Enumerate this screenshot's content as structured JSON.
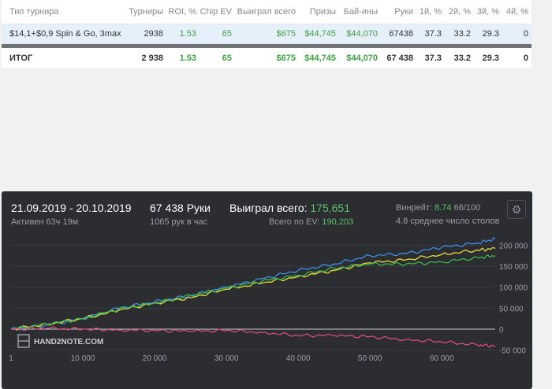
{
  "table": {
    "headers": [
      "Тип турнира",
      "Турниры",
      "ROI, %",
      "Chip EV",
      "Выиграл всего",
      "Призы",
      "Бай-ины",
      "Руки",
      "1й, %",
      "2й, %",
      "3й, %",
      "4й, %"
    ],
    "rows": [
      [
        "$14,1+$0,9 Spin & Go, 3max",
        "2938",
        "1.53",
        "65",
        "$675",
        "$44,745",
        "$44,070",
        "67438",
        "37.3",
        "33.2",
        "29.3",
        "0"
      ]
    ],
    "total": [
      "ИТОГ",
      "2 938",
      "1.53",
      "65",
      "$675",
      "$44,745",
      "$44,070",
      "67 438",
      "37.3",
      "33.2",
      "29.3",
      "0"
    ]
  },
  "stats": {
    "date_range": "21.09.2019 - 20.10.2019",
    "active": "Активен 63ч 19м",
    "hands": "67 438 Руки",
    "hands_per_hour": "1065 рук в час",
    "won_label": "Выиграл всего:",
    "won_value": "175,651",
    "ev_label": "Всего по EV:",
    "ev_value": "190,203",
    "winrate_label": "Винрейт:",
    "winrate_value": "8.74",
    "winrate_suffix": "66/100",
    "tables_avg": "4.8 среднее число столов",
    "logo_text": "HAND2NOTE.COM",
    "settings_icon": "gear-icon",
    "colors": {
      "panel": "#2b2d31",
      "green_text": "#5cc26a"
    }
  },
  "chart_data": {
    "type": "line",
    "x_ticks": [
      "1",
      "10 000",
      "20 000",
      "30 000",
      "40 000",
      "50 000",
      "60 000"
    ],
    "x_tick_values": [
      1,
      10000,
      20000,
      30000,
      40000,
      50000,
      60000
    ],
    "y_ticks": [
      "200 000",
      "150 000",
      "100 000",
      "50 000",
      "0",
      "-50 000"
    ],
    "y_tick_values": [
      200000,
      150000,
      100000,
      50000,
      0,
      -50000
    ],
    "xlim": [
      0,
      67438
    ],
    "ylim": [
      -60000,
      225000
    ],
    "series": [
      {
        "color": "#3d8ee6",
        "x": [
          0,
          5000,
          10000,
          15000,
          20000,
          25000,
          30000,
          35000,
          40000,
          45000,
          50000,
          55000,
          60000,
          65000,
          67438
        ],
        "y": [
          0,
          10000,
          25000,
          50000,
          65000,
          80000,
          100000,
          120000,
          140000,
          155000,
          175000,
          180000,
          195000,
          205000,
          215000
        ]
      },
      {
        "color": "#e6d93b",
        "x": [
          0,
          5000,
          10000,
          15000,
          20000,
          25000,
          30000,
          35000,
          40000,
          45000,
          50000,
          55000,
          60000,
          65000,
          67438
        ],
        "y": [
          0,
          12000,
          25000,
          45000,
          62000,
          75000,
          95000,
          110000,
          125000,
          140000,
          158000,
          165000,
          178000,
          188000,
          192000
        ]
      },
      {
        "color": "#3fb64a",
        "x": [
          0,
          5000,
          10000,
          15000,
          20000,
          25000,
          30000,
          35000,
          40000,
          45000,
          50000,
          55000,
          60000,
          65000,
          67438
        ],
        "y": [
          0,
          12000,
          25000,
          48000,
          62000,
          80000,
          98000,
          115000,
          128000,
          145000,
          155000,
          155000,
          160000,
          170000,
          175000
        ]
      },
      {
        "color": "#d64a7c",
        "x": [
          0,
          5000,
          10000,
          15000,
          20000,
          25000,
          30000,
          35000,
          40000,
          45000,
          50000,
          55000,
          60000,
          65000,
          67438
        ],
        "y": [
          0,
          2000,
          0,
          -2000,
          -3000,
          -5000,
          -3000,
          -8000,
          -15000,
          -15000,
          -18000,
          -25000,
          -30000,
          -38000,
          -40000
        ]
      }
    ]
  }
}
